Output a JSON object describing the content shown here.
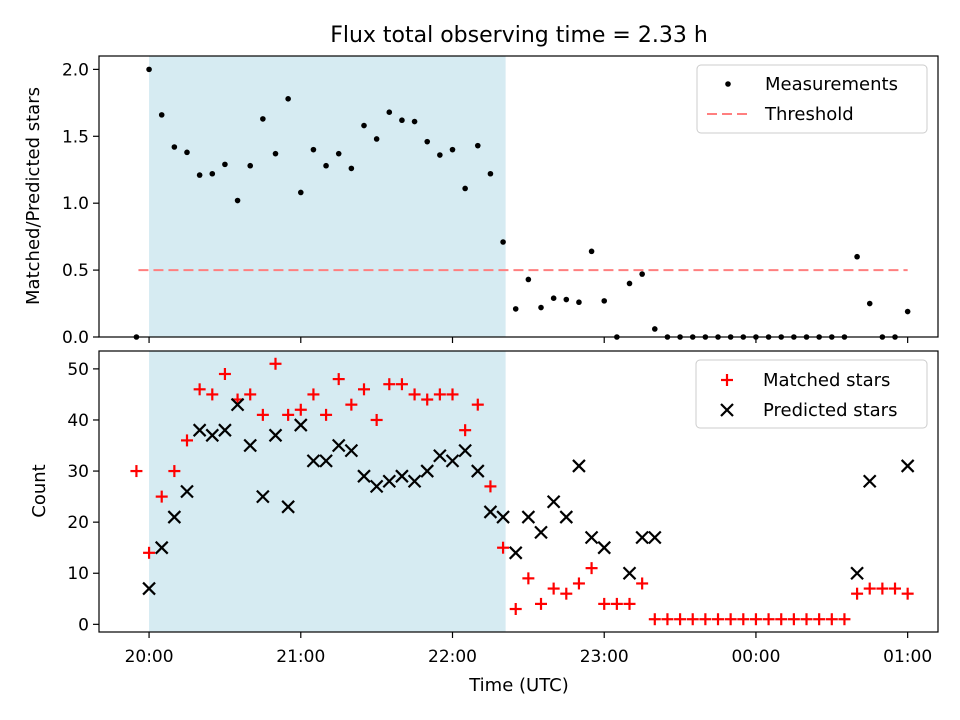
{
  "chart_data": {
    "title": "Flux total observing time = 2.33 h",
    "xlabel": "Time (UTC)",
    "x_tick_labels": [
      "20:00",
      "21:00",
      "22:00",
      "23:00",
      "00:00",
      "01:00"
    ],
    "x_ticks_hours": [
      20,
      21,
      22,
      23,
      24,
      25
    ],
    "xlim_hours": [
      19.67,
      25.2
    ],
    "shaded_interval_hours": [
      20.0,
      22.35
    ],
    "shade_color": "#add8e6",
    "colors": {
      "matched": "#ff0000",
      "predicted": "#000000",
      "measurement": "#000000",
      "threshold": "#ff7f7f"
    },
    "times": [
      "19:55",
      "20:00",
      "20:05",
      "20:10",
      "20:15",
      "20:20",
      "20:25",
      "20:30",
      "20:35",
      "20:40",
      "20:45",
      "20:50",
      "20:55",
      "21:00",
      "21:05",
      "21:10",
      "21:15",
      "21:20",
      "21:25",
      "21:30",
      "21:35",
      "21:40",
      "21:45",
      "21:50",
      "21:55",
      "22:00",
      "22:05",
      "22:10",
      "22:15",
      "22:20",
      "22:25",
      "22:30",
      "22:35",
      "22:40",
      "22:45",
      "22:50",
      "22:55",
      "23:00",
      "23:05",
      "23:10",
      "23:15",
      "23:20",
      "23:25",
      "23:30",
      "23:35",
      "23:40",
      "23:45",
      "23:50",
      "23:55",
      "00:00",
      "00:05",
      "00:10",
      "00:15",
      "00:20",
      "00:25",
      "00:30",
      "00:35",
      "00:40",
      "00:45",
      "00:50",
      "00:55",
      "01:00"
    ],
    "top_panel": {
      "type": "scatter",
      "ylabel": "Matched/Predicted stars",
      "ylim": [
        0,
        2.1
      ],
      "y_ticks": [
        0.0,
        0.5,
        1.0,
        1.5,
        2.0
      ],
      "y_tick_labels": [
        "0.0",
        "0.5",
        "1.0",
        "1.5",
        "2.0"
      ],
      "threshold": 0.5,
      "threshold_x_hours": [
        19.93,
        25.0
      ],
      "legend_location": "top-right",
      "series": [
        {
          "name": "Measurements",
          "values": [
            0.0,
            2.0,
            1.66,
            1.42,
            1.38,
            1.21,
            1.22,
            1.29,
            1.02,
            1.28,
            1.63,
            1.37,
            1.78,
            1.08,
            1.4,
            1.28,
            1.37,
            1.26,
            1.58,
            1.48,
            1.68,
            1.62,
            1.61,
            1.46,
            1.36,
            1.4,
            1.11,
            1.43,
            1.22,
            0.71,
            0.21,
            0.43,
            0.22,
            0.29,
            0.28,
            0.26,
            0.64,
            0.27,
            0.0,
            0.4,
            0.47,
            0.06,
            0.0,
            0.0,
            0.0,
            0.0,
            0.0,
            0.0,
            0.0,
            0.0,
            0.0,
            0.0,
            0.0,
            0.0,
            0.0,
            0.0,
            0.0,
            0.6,
            0.25,
            0.0,
            0.0,
            0.19
          ]
        },
        {
          "name": "Threshold"
        }
      ]
    },
    "bottom_panel": {
      "type": "scatter",
      "ylabel": "Count",
      "ylim": [
        -1.5,
        53.5
      ],
      "y_ticks": [
        0,
        10,
        20,
        30,
        40,
        50
      ],
      "y_tick_labels": [
        "0",
        "10",
        "20",
        "30",
        "40",
        "50"
      ],
      "legend_location": "top-right",
      "series": [
        {
          "name": "Matched stars",
          "values": [
            30,
            14,
            25,
            30,
            36,
            46,
            45,
            49,
            44,
            45,
            41,
            51,
            41,
            42,
            45,
            41,
            48,
            43,
            46,
            40,
            47,
            47,
            45,
            44,
            45,
            45,
            38,
            43,
            27,
            15,
            3,
            9,
            4,
            7,
            6,
            8,
            11,
            4,
            4,
            4,
            8,
            1,
            1,
            1,
            1,
            1,
            1,
            1,
            1,
            1,
            1,
            1,
            1,
            1,
            1,
            1,
            1,
            6,
            7,
            7,
            7,
            6
          ]
        },
        {
          "name": "Predicted stars",
          "values": [
            null,
            7,
            15,
            21,
            26,
            38,
            37,
            38,
            43,
            35,
            25,
            37,
            23,
            39,
            32,
            32,
            35,
            34,
            29,
            27,
            28,
            29,
            28,
            30,
            33,
            32,
            34,
            30,
            22,
            21,
            14,
            21,
            18,
            24,
            21,
            31,
            17,
            15,
            null,
            10,
            17,
            17,
            null,
            null,
            null,
            null,
            null,
            null,
            null,
            null,
            null,
            null,
            null,
            null,
            null,
            null,
            null,
            10,
            28,
            null,
            null,
            31
          ]
        }
      ]
    }
  }
}
